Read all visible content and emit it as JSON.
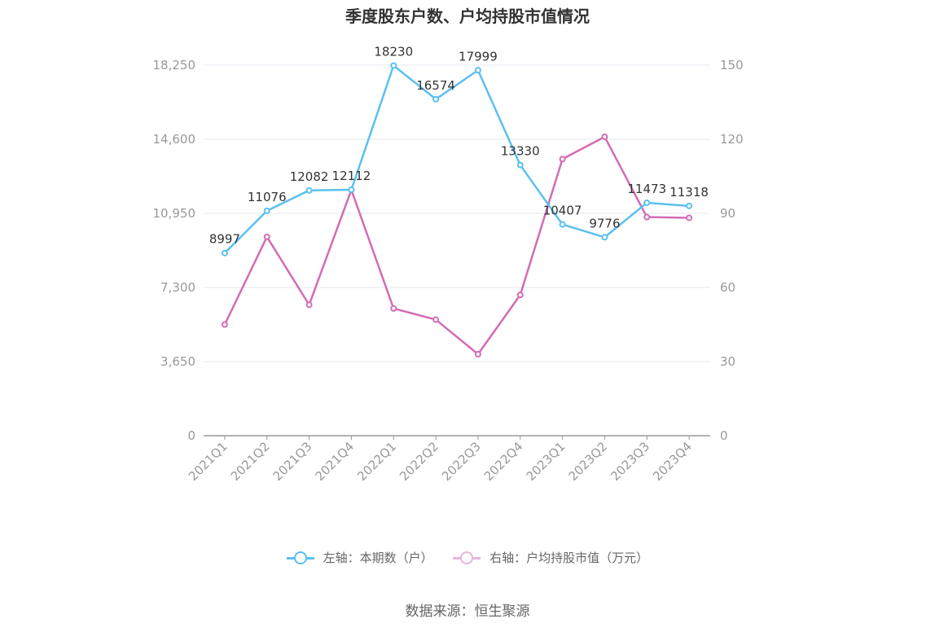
{
  "chart_data": {
    "type": "line",
    "title": "季度股东户数、户均持股市值情况",
    "categories": [
      "2021Q1",
      "2021Q2",
      "2021Q3",
      "2021Q4",
      "2022Q1",
      "2022Q2",
      "2022Q3",
      "2022Q4",
      "2023Q1",
      "2023Q2",
      "2023Q3",
      "2023Q4"
    ],
    "left_axis": {
      "ticks": [
        "0",
        "3,650",
        "7,300",
        "10,950",
        "14,600",
        "18,250"
      ],
      "ylim": [
        0,
        18250
      ]
    },
    "right_axis": {
      "ticks": [
        "0",
        "30",
        "60",
        "90",
        "120",
        "150"
      ],
      "ylim": [
        0,
        150
      ]
    },
    "series": [
      {
        "name": "左轴：本期数（户）",
        "axis": "left",
        "color": "#5bc0f0",
        "values": [
          8997,
          11076,
          12082,
          12112,
          18230,
          16574,
          17999,
          13330,
          10407,
          9776,
          11473,
          11318
        ],
        "labels": [
          "8997",
          "11076",
          "12082",
          "12112",
          "18230",
          "16574",
          "17999",
          "13330",
          "10407",
          "9776",
          "11473",
          "11318"
        ]
      },
      {
        "name": "右轴：户均持股市值（万元）",
        "axis": "right",
        "color": "#d36cb4",
        "values": [
          45,
          80.5,
          53,
          99.5,
          51.5,
          47,
          33,
          57,
          112,
          121,
          88.5,
          88.2
        ]
      }
    ],
    "grid": true,
    "legend_position": "bottom"
  },
  "source_text": "数据来源：恒生聚源"
}
